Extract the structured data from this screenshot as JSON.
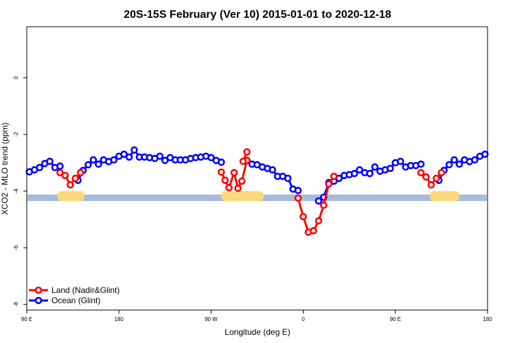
{
  "chart_data": {
    "type": "line",
    "title": "20S-15S February (Ver 10)   2015-01-01 to 2020-12-18",
    "xlabel": "Longitude (deg E)",
    "ylabel": "XCO2 - MLO trend (ppm)",
    "xlim": [
      90,
      450
    ],
    "ylim": [
      -8.2,
      1.8
    ],
    "xticks": [
      90,
      162,
      234,
      306,
      378,
      450
    ],
    "xtick_labels": [
      "90 E",
      "180",
      "90 W",
      "0",
      "90 E",
      "180"
    ],
    "yticks": [
      0,
      -2,
      -4,
      -6,
      -8
    ],
    "ytick_labels": [
      "0",
      "-2",
      "-4",
      "-6",
      "-8"
    ],
    "legend": {
      "position": "bottom-left",
      "entries": [
        {
          "label": "Land (Nadir&Glint)",
          "color": "#ff0000"
        },
        {
          "label": "Ocean (Glint)",
          "color": "#0000ff"
        }
      ]
    },
    "colors": {
      "land": "#ff0000",
      "ocean": "#0000ff",
      "band_ocean": "#a6bbdc",
      "band_land": "#fbd97c"
    },
    "band": {
      "y_top": -4.12,
      "y_bottom": -4.35
    },
    "land_band_segments": [
      [
        114,
        135
      ],
      [
        242,
        275
      ],
      [
        405,
        428
      ]
    ],
    "series": [
      {
        "name": "Ocean (Glint)",
        "segments": [
          {
            "x": [
              92,
              96,
              100,
              104,
              108,
              112,
              116
            ],
            "y": [
              -3.32,
              -3.25,
              -3.17,
              -3.03,
              -2.95,
              -3.17,
              -3.12
            ]
          },
          {
            "x": [
              130,
              134,
              138,
              142,
              146,
              150,
              154,
              158,
              162,
              166,
              170,
              174,
              178,
              182,
              186,
              190,
              194,
              198,
              202,
              206,
              210,
              214,
              218,
              222,
              226,
              230,
              234,
              238,
              242
            ],
            "y": [
              -3.62,
              -3.27,
              -3.07,
              -2.9,
              -3.05,
              -2.9,
              -2.96,
              -2.9,
              -2.77,
              -2.7,
              -2.8,
              -2.55,
              -2.8,
              -2.8,
              -2.82,
              -2.85,
              -2.77,
              -2.92,
              -2.82,
              -2.9,
              -2.9,
              -2.9,
              -2.85,
              -2.82,
              -2.8,
              -2.77,
              -2.82,
              -2.92,
              -2.98
            ]
          },
          {
            "x": [
              262,
              266,
              270,
              274,
              278,
              282,
              286,
              290,
              294,
              298,
              302
            ],
            "y": [
              -2.92,
              -3.05,
              -3.07,
              -3.15,
              -3.2,
              -3.25,
              -3.48,
              -3.48,
              -3.55,
              -3.93,
              -3.98
            ]
          },
          {
            "x": [
              318,
              322,
              326,
              330,
              334,
              338,
              342,
              346,
              350,
              354,
              358,
              362,
              366,
              370,
              374,
              378,
              382,
              386,
              390,
              394,
              398
            ],
            "y": [
              -4.35,
              -4.22,
              -3.7,
              -3.65,
              -3.55,
              -3.45,
              -3.42,
              -3.38,
              -3.25,
              -3.35,
              -3.38,
              -3.15,
              -3.3,
              -3.25,
              -3.2,
              -3.0,
              -2.95,
              -3.15,
              -3.1,
              -3.1,
              -3.05
            ]
          },
          {
            "x": [
              412,
              416,
              420,
              424,
              428,
              432,
              436,
              440,
              444,
              448
            ],
            "y": [
              -3.62,
              -3.27,
              -3.07,
              -2.9,
              -3.05,
              -2.9,
              -2.96,
              -2.9,
              -2.77,
              -2.7
            ]
          }
        ]
      },
      {
        "name": "Land (Nadir&Glint)",
        "segments": [
          {
            "x": [
              116,
              120,
              124,
              128,
              132
            ],
            "y": [
              -3.35,
              -3.45,
              -3.78,
              -3.55,
              -3.35
            ]
          },
          {
            "x": [
              242,
              245,
              248,
              252,
              255,
              258,
              262
            ],
            "y": [
              -3.33,
              -3.62,
              -3.88,
              -3.35,
              -3.9,
              -3.65,
              -2.92
            ]
          },
          {
            "x": [
              259,
              262
            ],
            "y": [
              -2.95,
              -2.62
            ]
          },
          {
            "x": [
              302,
              306,
              310,
              314,
              318,
              322,
              326,
              330
            ],
            "y": [
              -4.25,
              -4.9,
              -5.45,
              -5.4,
              -5.05,
              -4.5,
              -3.75,
              -3.48
            ]
          },
          {
            "x": [
              398,
              402,
              406,
              410,
              414
            ],
            "y": [
              -3.35,
              -3.5,
              -3.78,
              -3.55,
              -3.35
            ]
          }
        ]
      }
    ]
  }
}
